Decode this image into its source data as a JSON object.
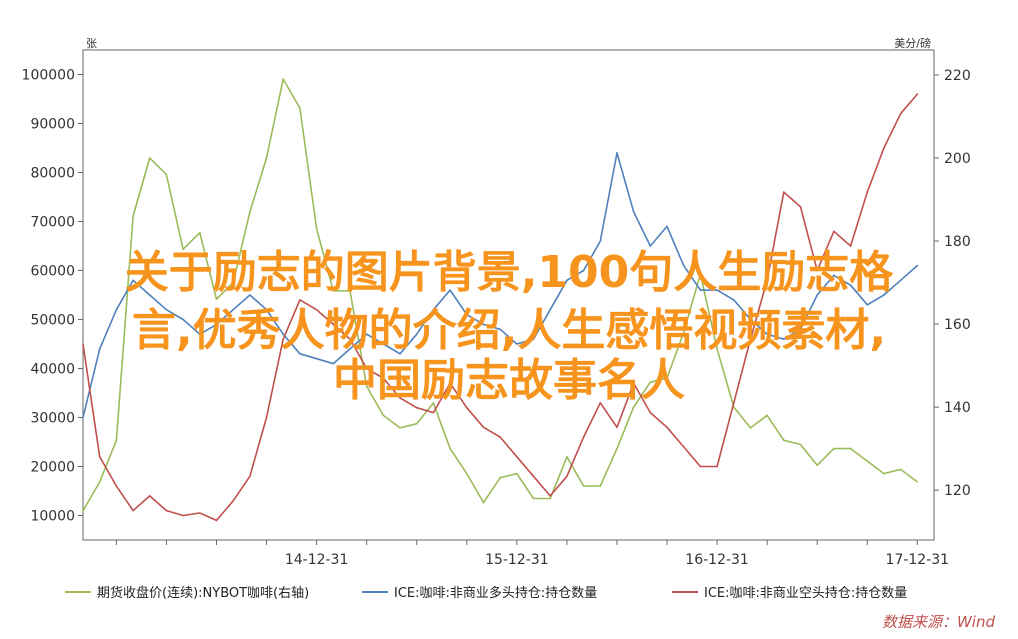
{
  "overlay_title": {
    "line1": "关于励志的图片背景,100句人生励志格",
    "line2": "言,优秀人物的介绍,人生感悟视频素材,",
    "line3": "中国励志故事名人"
  },
  "watermark": "数据来源：Wind",
  "chart_data": {
    "type": "line",
    "xlabel": "",
    "x_ticks": [
      "14-12-31",
      "15-12-31",
      "16-12-31",
      "17-12-31"
    ],
    "x_range": [
      "2013-10",
      "2018-01"
    ],
    "y_left": {
      "unit": "张",
      "range": [
        5000,
        105000
      ],
      "ticks": [
        10000,
        20000,
        30000,
        40000,
        50000,
        60000,
        70000,
        80000,
        90000,
        100000
      ]
    },
    "y_right": {
      "unit": "美分/磅",
      "range": [
        108,
        226
      ],
      "ticks": [
        120,
        140,
        160,
        180,
        200,
        220
      ]
    },
    "grid": false,
    "legend_position": "bottom",
    "colors": {
      "green": "#9bbb59",
      "blue": "#4f81bd",
      "red": "#c0504d"
    },
    "series": [
      {
        "name": "期货收盘价(连续):NYBOT咖啡(右轴)",
        "axis": "right",
        "color": "#9bbb59",
        "x": [
          "2013-10",
          "2013-11",
          "2013-12",
          "2014-01",
          "2014-02",
          "2014-03",
          "2014-04",
          "2014-05",
          "2014-06",
          "2014-07",
          "2014-08",
          "2014-09",
          "2014-10",
          "2014-11",
          "2014-12",
          "2015-01",
          "2015-02",
          "2015-03",
          "2015-04",
          "2015-05",
          "2015-06",
          "2015-07",
          "2015-08",
          "2015-09",
          "2015-10",
          "2015-11",
          "2015-12",
          "2016-01",
          "2016-02",
          "2016-03",
          "2016-04",
          "2016-05",
          "2016-06",
          "2016-07",
          "2016-08",
          "2016-09",
          "2016-10",
          "2016-11",
          "2016-12",
          "2017-01",
          "2017-02",
          "2017-03",
          "2017-04",
          "2017-05",
          "2017-06",
          "2017-07",
          "2017-08",
          "2017-09",
          "2017-10",
          "2017-11",
          "2017-12"
        ],
        "values": [
          115,
          122,
          132,
          186,
          200,
          196,
          178,
          182,
          166,
          170,
          187,
          200,
          219,
          212,
          183,
          168,
          168,
          145,
          138,
          135,
          136,
          141,
          130,
          124,
          117,
          123,
          124,
          118,
          118,
          128,
          121,
          121,
          130,
          140,
          146,
          147,
          158,
          172,
          154,
          140,
          135,
          138,
          132,
          131,
          126,
          130,
          130,
          127,
          124,
          125,
          122
        ]
      },
      {
        "name": "ICE:咖啡:非商业多头持仓:持仓数量",
        "axis": "left",
        "color": "#4f81bd",
        "x": [
          "2013-10",
          "2013-11",
          "2013-12",
          "2014-01",
          "2014-02",
          "2014-03",
          "2014-04",
          "2014-05",
          "2014-06",
          "2014-07",
          "2014-08",
          "2014-09",
          "2014-10",
          "2014-11",
          "2014-12",
          "2015-01",
          "2015-02",
          "2015-03",
          "2015-04",
          "2015-05",
          "2015-06",
          "2015-07",
          "2015-08",
          "2015-09",
          "2015-10",
          "2015-11",
          "2015-12",
          "2016-01",
          "2016-02",
          "2016-03",
          "2016-04",
          "2016-05",
          "2016-06",
          "2016-07",
          "2016-08",
          "2016-09",
          "2016-10",
          "2016-11",
          "2016-12",
          "2017-01",
          "2017-02",
          "2017-03",
          "2017-04",
          "2017-05",
          "2017-06",
          "2017-07",
          "2017-08",
          "2017-09",
          "2017-10",
          "2017-11",
          "2017-12"
        ],
        "values": [
          30000,
          44000,
          52000,
          58000,
          55000,
          52000,
          50000,
          47000,
          49000,
          52000,
          55000,
          52000,
          47000,
          43000,
          42000,
          41000,
          44000,
          47000,
          45000,
          43000,
          47000,
          52000,
          56000,
          51000,
          49000,
          48000,
          45000,
          46000,
          52000,
          58000,
          60000,
          66000,
          84000,
          72000,
          65000,
          69000,
          61000,
          56000,
          56000,
          54000,
          50000,
          47000,
          46000,
          48000,
          55000,
          59000,
          57000,
          53000,
          55000,
          58000,
          61000
        ]
      },
      {
        "name": "ICE:咖啡:非商业空头持仓:持仓数量",
        "axis": "left",
        "color": "#c0504d",
        "x": [
          "2013-10",
          "2013-11",
          "2013-12",
          "2014-01",
          "2014-02",
          "2014-03",
          "2014-04",
          "2014-05",
          "2014-06",
          "2014-07",
          "2014-08",
          "2014-09",
          "2014-10",
          "2014-11",
          "2014-12",
          "2015-01",
          "2015-02",
          "2015-03",
          "2015-04",
          "2015-05",
          "2015-06",
          "2015-07",
          "2015-08",
          "2015-09",
          "2015-10",
          "2015-11",
          "2015-12",
          "2016-01",
          "2016-02",
          "2016-03",
          "2016-04",
          "2016-05",
          "2016-06",
          "2016-07",
          "2016-08",
          "2016-09",
          "2016-10",
          "2016-11",
          "2016-12",
          "2017-01",
          "2017-02",
          "2017-03",
          "2017-04",
          "2017-05",
          "2017-06",
          "2017-07",
          "2017-08",
          "2017-09",
          "2017-10",
          "2017-11",
          "2017-12"
        ],
        "values": [
          45000,
          22000,
          16000,
          11000,
          14000,
          11000,
          10000,
          10500,
          9000,
          13000,
          18000,
          30000,
          46000,
          54000,
          52000,
          49000,
          46000,
          40000,
          38000,
          34000,
          32000,
          31000,
          37000,
          32000,
          28000,
          26000,
          22000,
          18000,
          14000,
          18000,
          26000,
          33000,
          28000,
          37000,
          31000,
          28000,
          24000,
          20000,
          20000,
          33000,
          46000,
          58000,
          76000,
          73000,
          60000,
          68000,
          65000,
          76000,
          85000,
          92000,
          96000
        ]
      }
    ]
  }
}
